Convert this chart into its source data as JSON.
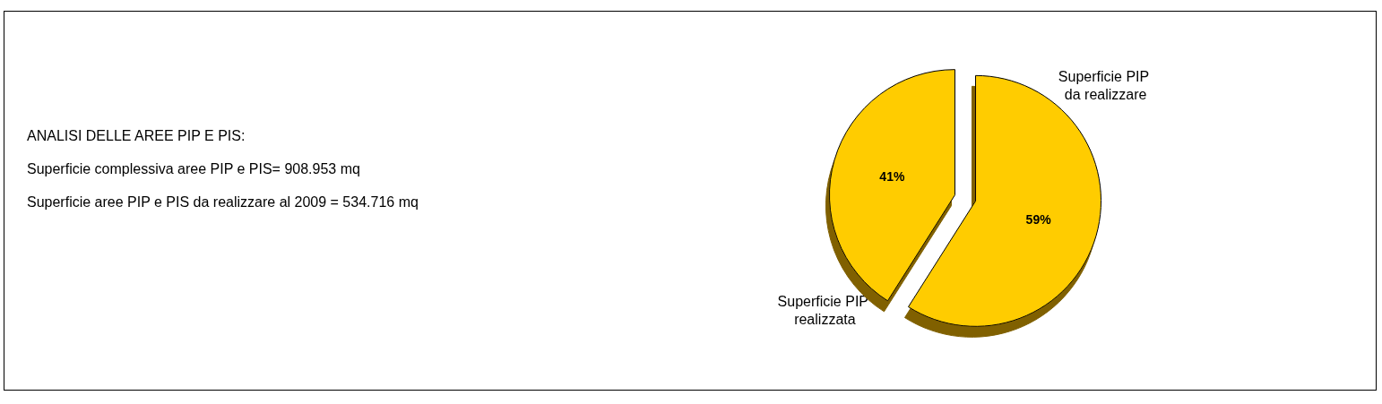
{
  "chart_data": {
    "type": "pie",
    "categories": [
      "Superficie PIP realizzata",
      "Superficie PIP da realizzare"
    ],
    "values": [
      41,
      59
    ],
    "colors": [
      "#ffcc00",
      "#ffcc00"
    ],
    "value_labels": [
      "41%",
      "59%"
    ],
    "annotations": [
      "ANALISI DELLE AREE PIP E PIS:",
      "Superficie complessiva aree PIP e PIS= 908.953 mq",
      "Superficie aree PIP e PIS da realizzare al 2009 = 534.716 mq"
    ]
  }
}
